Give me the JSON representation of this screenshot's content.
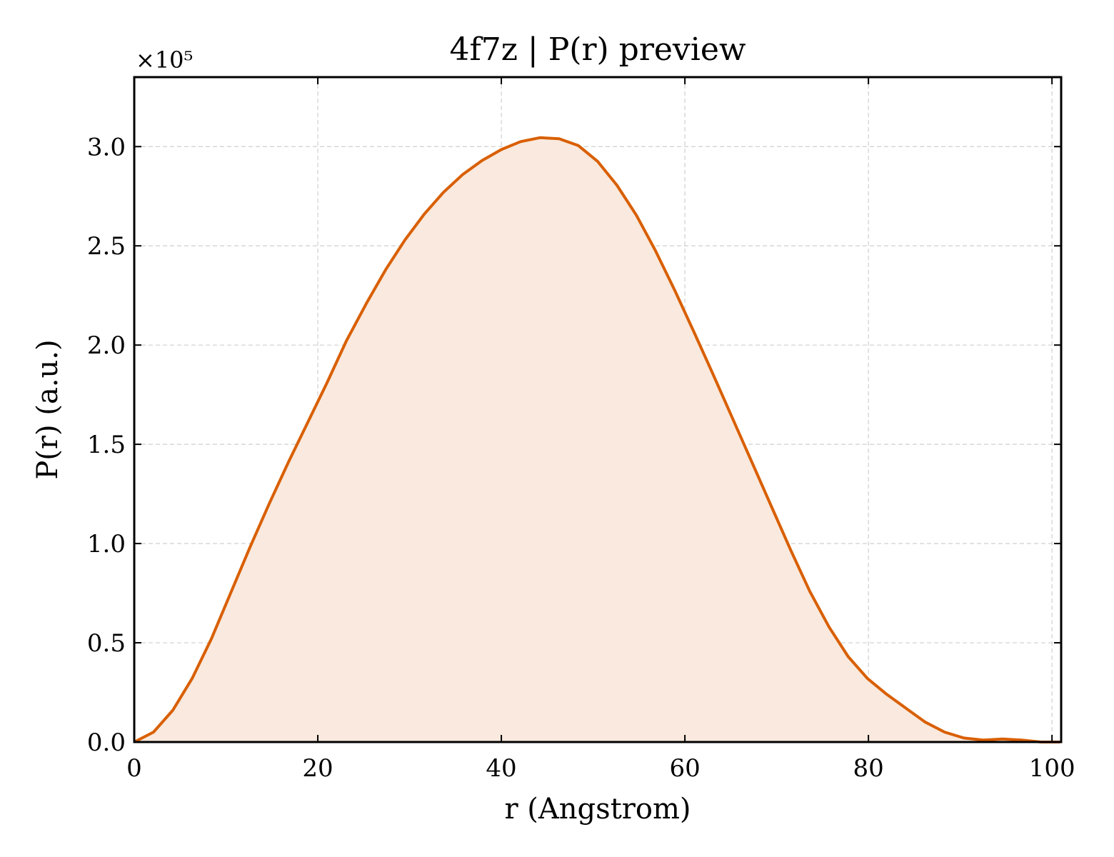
{
  "chart_data": {
    "type": "area",
    "title": "4f7z | P(r) preview",
    "xlabel": "r (Angstrom)",
    "ylabel": "P(r) (a.u.)",
    "y_offset_label": "×10⁵",
    "xlim": [
      0,
      101
    ],
    "ylim": [
      0,
      3.35
    ],
    "xticks": [
      0,
      20,
      40,
      60,
      80,
      100
    ],
    "xtick_labels": [
      "0",
      "20",
      "40",
      "60",
      "80",
      "100"
    ],
    "yticks": [
      0.0,
      0.5,
      1.0,
      1.5,
      2.0,
      2.5,
      3.0
    ],
    "ytick_labels": [
      "0.0",
      "0.5",
      "1.0",
      "1.5",
      "2.0",
      "2.5",
      "3.0"
    ],
    "grid": true,
    "line_color": "#d95f02",
    "fill_color": "#f9e9de",
    "series": [
      {
        "x": [
          0,
          2.1,
          4.2,
          6.3,
          8.4,
          10.5,
          12.6,
          14.7,
          16.8,
          18.9,
          21.0,
          23.1,
          25.3,
          27.4,
          29.5,
          31.6,
          33.7,
          35.8,
          37.9,
          40.0,
          42.1,
          44.2,
          46.3,
          48.4,
          50.5,
          52.6,
          54.7,
          56.8,
          58.9,
          61.0,
          63.1,
          65.2,
          67.3,
          69.4,
          71.5,
          73.6,
          75.7,
          77.8,
          79.9,
          82.0,
          84.1,
          86.2,
          88.3,
          90.4,
          92.5,
          94.6,
          96.7,
          98.8,
          100.9
        ],
        "y": [
          0.0,
          0.05,
          0.16,
          0.32,
          0.52,
          0.75,
          0.98,
          1.2,
          1.41,
          1.61,
          1.81,
          2.02,
          2.21,
          2.38,
          2.53,
          2.66,
          2.77,
          2.86,
          2.93,
          2.985,
          3.025,
          3.045,
          3.04,
          3.005,
          2.925,
          2.805,
          2.655,
          2.475,
          2.275,
          2.065,
          1.85,
          1.63,
          1.41,
          1.19,
          0.97,
          0.76,
          0.58,
          0.43,
          0.32,
          0.24,
          0.17,
          0.1,
          0.05,
          0.02,
          0.01,
          0.015,
          0.01,
          0.0,
          0.0
        ]
      }
    ]
  }
}
